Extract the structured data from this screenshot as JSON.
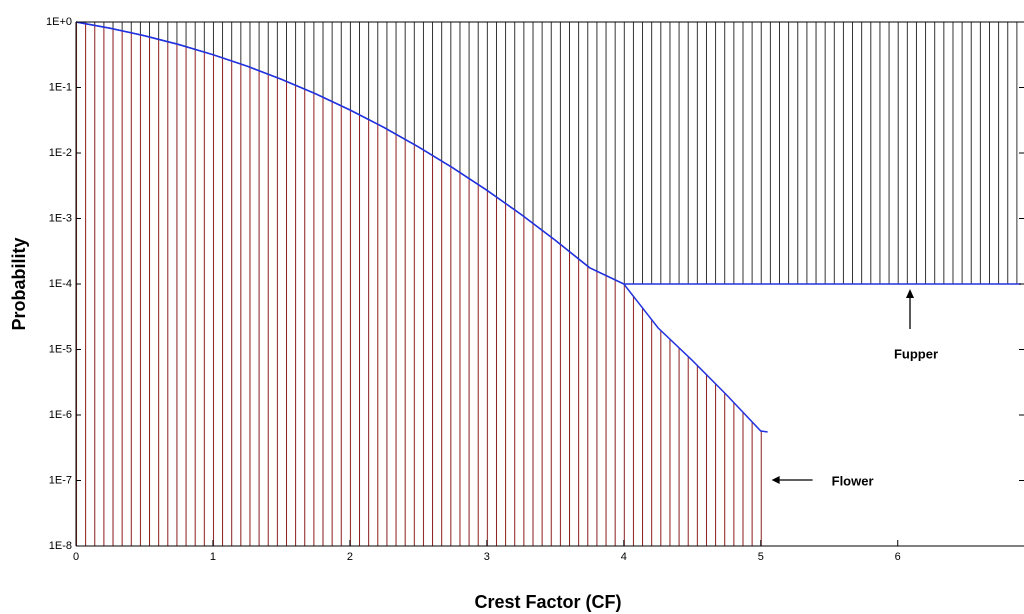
{
  "chart_data": {
    "type": "area",
    "x_label": "Crest Factor (CF)",
    "y_label": "Probability",
    "log_y": true,
    "xlim": [
      0,
      6.9
    ],
    "ylim": [
      1e-08,
      1
    ],
    "xticks": [
      0,
      1,
      2,
      3,
      4,
      5,
      6
    ],
    "yticks": [
      {
        "value": 1,
        "label": "1E+0"
      },
      {
        "value": 0.1,
        "label": "1E-1"
      },
      {
        "value": 0.01,
        "label": "1E-2"
      },
      {
        "value": 0.001,
        "label": "1E-3"
      },
      {
        "value": 0.0001,
        "label": "1E-4"
      },
      {
        "value": 1e-05,
        "label": "1E-5"
      },
      {
        "value": 1e-06,
        "label": "1E-6"
      },
      {
        "value": 1e-07,
        "label": "1E-7"
      },
      {
        "value": 1e-08,
        "label": "1E-8"
      }
    ],
    "series": [
      {
        "name": "Flower",
        "color": "#8b1a1a",
        "line_color": "#2233dd",
        "fill_to": "bottom",
        "x": [
          0,
          0.25,
          0.5,
          0.75,
          1,
          1.25,
          1.5,
          1.75,
          2,
          2.25,
          2.5,
          2.75,
          3,
          3.25,
          3.5,
          3.75,
          4,
          4.25,
          4.5,
          4.75,
          5,
          5.05
        ],
        "values": [
          1,
          0.8026,
          0.6171,
          0.4533,
          0.3173,
          0.2113,
          0.1336,
          0.0801,
          0.0455,
          0.02445,
          0.01242,
          0.00596,
          0.0027,
          0.001154,
          0.000465,
          0.000177,
          0.0001,
          2.14e-05,
          6.8e-06,
          2.03e-06,
          5.7e-07,
          5.5e-07
        ]
      },
      {
        "name": "Fupper",
        "color": "#000000",
        "line_color": "#2233dd",
        "fill_to": "top",
        "x": [
          0,
          0.25,
          0.5,
          0.75,
          1,
          1.25,
          1.5,
          1.75,
          2,
          2.25,
          2.5,
          2.75,
          3,
          3.25,
          3.5,
          3.75,
          4,
          6.9
        ],
        "values": [
          1,
          0.8026,
          0.6171,
          0.4533,
          0.3173,
          0.2113,
          0.1336,
          0.0801,
          0.0455,
          0.02445,
          0.01242,
          0.00596,
          0.0027,
          0.001154,
          0.000465,
          0.000177,
          0.0001,
          0.0001
        ]
      }
    ]
  }
}
